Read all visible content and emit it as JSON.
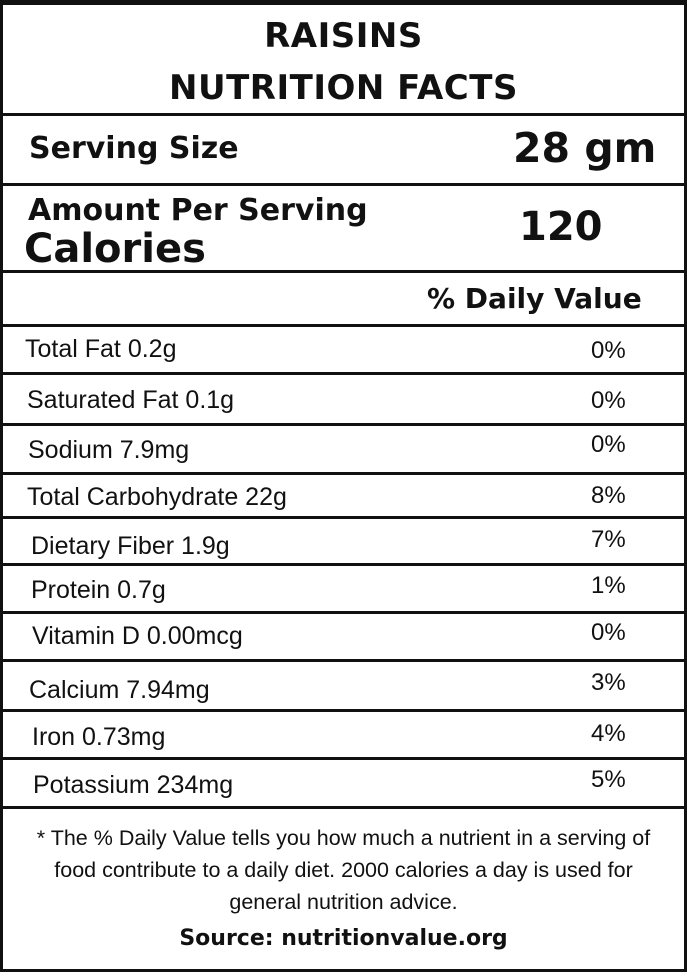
{
  "title": {
    "line1": "RAISINS",
    "line2": "NUTRITION FACTS"
  },
  "serving": {
    "label": "Serving Size",
    "value": "28 gm"
  },
  "amount": {
    "label": "Amount Per Serving",
    "calories_label": "Calories",
    "calories_value": "120"
  },
  "daily_value_header": "% Daily Value",
  "nutrients": [
    {
      "name": "Total Fat 0.2g",
      "pct": "0%"
    },
    {
      "name": "Saturated Fat 0.1g",
      "pct": "0%"
    },
    {
      "name": "Sodium 7.9mg",
      "pct": "0%"
    },
    {
      "name": "Total Carbohydrate 22g",
      "pct": "8%"
    },
    {
      "name": "Dietary Fiber 1.9g",
      "pct": "7%"
    },
    {
      "name": "Protein 0.7g",
      "pct": "1%"
    },
    {
      "name": "Vitamin D 0.00mcg",
      "pct": "0%"
    },
    {
      "name": "Calcium 7.94mg",
      "pct": "3%"
    },
    {
      "name": "Iron 0.73mg",
      "pct": "4%"
    },
    {
      "name": "Potassium 234mg",
      "pct": "5%"
    }
  ],
  "footnote": "* The % Daily Value tells you how much a nutrient in a serving of food contribute to a daily diet. 2000 calories a day is used for general nutrition advice.",
  "source": "Source: nutritionvalue.org"
}
